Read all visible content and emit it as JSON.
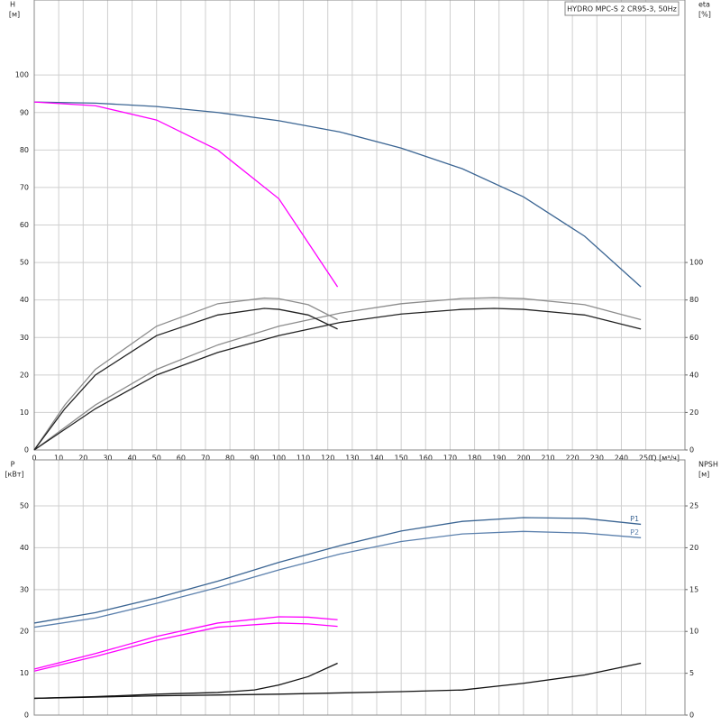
{
  "chart_data": [
    {
      "type": "line",
      "title": "HYDRO MPC-S 2 CR95-3, 50Hz",
      "ylabel": "H",
      "yunit": "[м]",
      "y2label": "eta",
      "y2unit": "[%]",
      "xlabel": "Q [м³/ч]",
      "xlim": [
        0,
        266
      ],
      "xticks": [
        0,
        10,
        20,
        30,
        40,
        50,
        60,
        70,
        80,
        90,
        100,
        110,
        120,
        130,
        140,
        150,
        160,
        170,
        180,
        190,
        200,
        210,
        220,
        230,
        240,
        250
      ],
      "xtick_labels": true,
      "ylim": [
        0,
        120
      ],
      "yticks": [
        0,
        10,
        20,
        30,
        40,
        50,
        60,
        70,
        80,
        90,
        100
      ],
      "y2lim": [
        0,
        240
      ],
      "y2ticks": [
        0,
        20,
        40,
        60,
        80,
        100
      ],
      "grid": true,
      "series": [
        {
          "color": "#3b6593",
          "x": [
            0,
            25,
            50,
            75,
            100,
            125,
            150,
            175,
            200,
            225,
            248
          ],
          "values": [
            92.8,
            92.5,
            91.6,
            90,
            87.8,
            84.8,
            80.5,
            75,
            67.5,
            57,
            43.5
          ]
        },
        {
          "color": "#ff00ff",
          "x": [
            0,
            25,
            50,
            75,
            100,
            124
          ],
          "values": [
            92.8,
            91.8,
            88,
            80,
            67,
            43.5
          ]
        },
        {
          "color": "#8c8c8c",
          "axis": "y2",
          "x": [
            0,
            25,
            50,
            75,
            100,
            125,
            150,
            175,
            188,
            200,
            225,
            248
          ],
          "values": [
            0,
            24,
            43,
            56,
            66,
            73,
            78,
            80.8,
            81.2,
            80.7,
            77.5,
            69.5
          ]
        },
        {
          "color": "#222222",
          "axis": "y2",
          "x": [
            0,
            25,
            50,
            75,
            100,
            125,
            150,
            175,
            188,
            200,
            225,
            248
          ],
          "values": [
            0,
            22,
            40,
            52,
            61,
            68,
            72.5,
            75,
            75.5,
            75,
            72,
            64.5
          ]
        },
        {
          "color": "#8c8c8c",
          "axis": "y2",
          "x": [
            0,
            12.5,
            25,
            50,
            75,
            94,
            100,
            112,
            124
          ],
          "values": [
            0,
            24,
            43,
            66,
            78,
            81,
            80.7,
            77.5,
            69.5
          ]
        },
        {
          "color": "#222222",
          "axis": "y2",
          "x": [
            0,
            12.5,
            25,
            50,
            75,
            94,
            100,
            112,
            124
          ],
          "values": [
            0,
            22,
            40,
            61,
            72,
            75.5,
            75,
            72,
            64.5
          ]
        }
      ]
    },
    {
      "type": "line",
      "ylabel": "P",
      "yunit": "[кВт]",
      "y2label": "NPSH",
      "y2unit": "[м]",
      "xlim": [
        0,
        266
      ],
      "xticks": [
        0,
        10,
        20,
        30,
        40,
        50,
        60,
        70,
        80,
        90,
        100,
        110,
        120,
        130,
        140,
        150,
        160,
        170,
        180,
        190,
        200,
        210,
        220,
        230,
        240,
        250
      ],
      "xtick_labels": false,
      "ylim": [
        0,
        61
      ],
      "yticks": [
        0,
        10,
        20,
        30,
        40,
        50
      ],
      "y2lim": [
        0,
        30.5
      ],
      "y2ticks": [
        0,
        5,
        10,
        15,
        20,
        25
      ],
      "grid": true,
      "series": [
        {
          "name": "P1",
          "color": "#3b6593",
          "x": [
            0,
            25,
            50,
            75,
            100,
            125,
            150,
            175,
            200,
            225,
            248
          ],
          "values": [
            22,
            24.5,
            28,
            32,
            36.5,
            40.5,
            44,
            46.3,
            47.2,
            47,
            45.6
          ]
        },
        {
          "name": "P2",
          "color": "#5b80ad",
          "x": [
            0,
            25,
            50,
            75,
            100,
            125,
            150,
            175,
            200,
            225,
            248
          ],
          "values": [
            21,
            23.2,
            26.7,
            30.5,
            34.7,
            38.5,
            41.5,
            43.3,
            43.9,
            43.5,
            42.4
          ]
        },
        {
          "color": "#ff00ff",
          "x": [
            0,
            25,
            50,
            75,
            100,
            112,
            124
          ],
          "values": [
            11,
            14.7,
            18.8,
            22,
            23.5,
            23.4,
            22.8
          ]
        },
        {
          "color": "#ff00ff",
          "x": [
            0,
            25,
            50,
            75,
            100,
            112,
            124
          ],
          "values": [
            10.5,
            14,
            17.9,
            21,
            22,
            21.8,
            21.2
          ]
        },
        {
          "color": "#111111",
          "axis": "y2",
          "x": [
            0,
            50,
            100,
            150,
            175,
            200,
            225,
            248
          ],
          "values": [
            2,
            2.3,
            2.5,
            2.8,
            3,
            3.8,
            4.8,
            6.2
          ]
        },
        {
          "color": "#111111",
          "axis": "y2",
          "x": [
            0,
            25,
            50,
            75,
            90,
            100,
            112,
            124
          ],
          "values": [
            2,
            2.2,
            2.5,
            2.7,
            3,
            3.6,
            4.6,
            6.2
          ]
        }
      ]
    }
  ]
}
